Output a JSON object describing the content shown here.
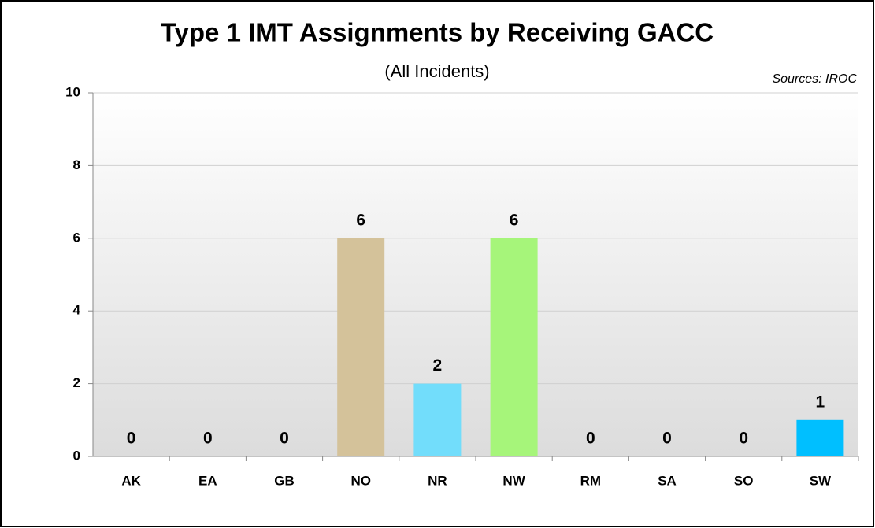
{
  "chart_data": {
    "type": "bar",
    "title": "Type 1 IMT Assignments by Receiving GACC",
    "subtitle": "(All Incidents)",
    "annotation": "Sources: IROC",
    "categories": [
      "AK",
      "EA",
      "GB",
      "NO",
      "NR",
      "NW",
      "RM",
      "SA",
      "SO",
      "SW"
    ],
    "values": [
      0,
      0,
      0,
      6,
      2,
      6,
      0,
      0,
      0,
      1
    ],
    "colors": [
      null,
      null,
      null,
      "#d4c29a",
      "#72ddfb",
      "#a6f57a",
      null,
      null,
      null,
      "#00bfff"
    ],
    "ylim": [
      0,
      10
    ],
    "yticks": [
      0,
      2,
      4,
      6,
      8,
      10
    ],
    "grid": true
  }
}
